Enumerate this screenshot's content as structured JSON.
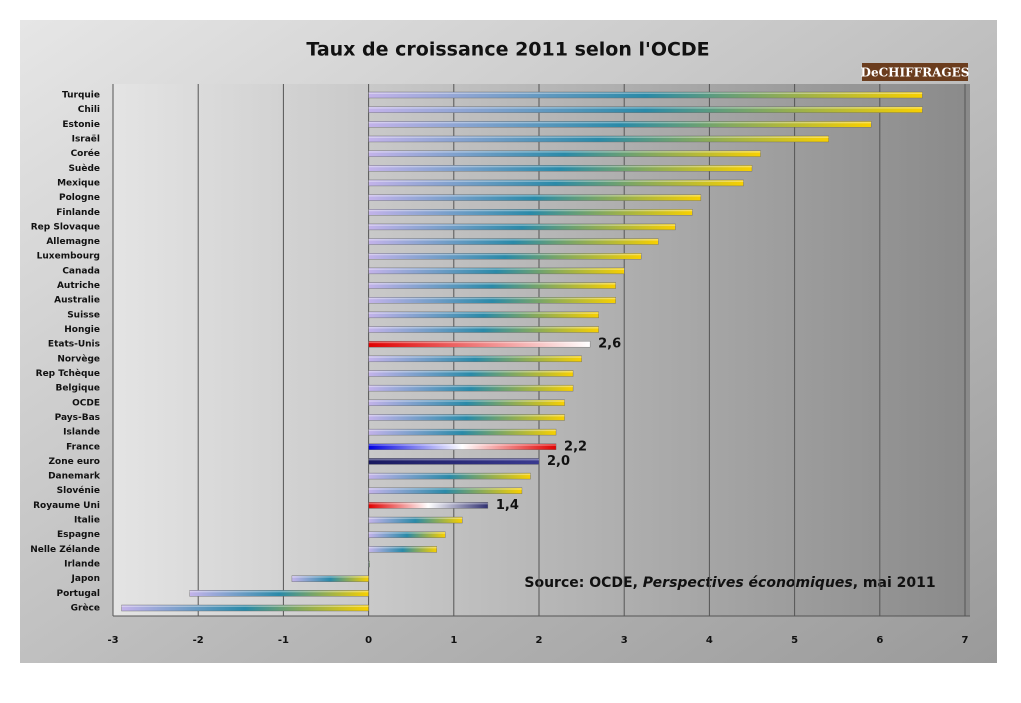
{
  "chart_data": {
    "type": "hbar",
    "title": "Taux de croissance 2011 selon l'OCDE",
    "logo": "DeCHIFFRAGES",
    "source": [
      "Source: OCDE, ",
      "Perspectives économiques",
      ", mai 2011"
    ],
    "categories": [
      "Turquie",
      "Chili",
      "Estonie",
      "Israël",
      "Corée",
      "Suède",
      "Mexique",
      "Pologne",
      "Finlande",
      "Rep Slovaque",
      "Allemagne",
      "Luxembourg",
      "Canada",
      "Autriche",
      "Australie",
      "Suisse",
      "Hongie",
      "Etats-Unis",
      "Norvège",
      "Rep Tchèque",
      "Belgique",
      "OCDE",
      "Pays-Bas",
      "Islande",
      "France",
      "Zone euro",
      "Danemark",
      "Slovénie",
      "Royaume Uni",
      "Italie",
      "Espagne",
      "Nelle Zélande",
      "Irlande",
      "Japon",
      "Portugal",
      "Grèce"
    ],
    "values": [
      6.5,
      6.5,
      5.9,
      5.4,
      4.6,
      4.5,
      4.4,
      3.9,
      3.8,
      3.6,
      3.4,
      3.2,
      3.0,
      2.9,
      2.9,
      2.7,
      2.7,
      2.6,
      2.5,
      2.4,
      2.4,
      2.3,
      2.3,
      2.2,
      2.2,
      2.0,
      1.9,
      1.8,
      1.4,
      1.1,
      0.9,
      0.8,
      0.0,
      -0.9,
      -2.1,
      -2.9
    ],
    "value_labels": [
      null,
      null,
      null,
      null,
      null,
      null,
      null,
      null,
      null,
      null,
      null,
      null,
      null,
      null,
      null,
      null,
      null,
      "2,6",
      null,
      null,
      null,
      null,
      null,
      null,
      "2,2",
      "2,0",
      null,
      null,
      "1,4",
      null,
      null,
      null,
      null,
      null,
      null,
      null
    ],
    "color": [
      "#c3b3ea",
      "#2a8aa8",
      "#f8d000"
    ],
    "colors": [
      null,
      null,
      null,
      null,
      null,
      null,
      null,
      null,
      null,
      null,
      null,
      null,
      null,
      null,
      null,
      null,
      null,
      [
        "#e00000",
        "#ffffff"
      ],
      null,
      null,
      null,
      null,
      null,
      null,
      [
        "#0000e0",
        "#ffffff",
        "#e00000"
      ],
      [
        "#1a1a60",
        "#3a3a90"
      ],
      null,
      null,
      [
        "#e00000",
        "#ffffff",
        "#303070"
      ],
      null,
      null,
      null,
      null,
      null,
      null,
      null
    ],
    "xlim": [
      -3,
      7
    ],
    "xticks": [
      -3,
      -2,
      -1,
      0,
      1,
      2,
      3,
      4,
      5,
      6,
      7
    ],
    "grid": true
  }
}
